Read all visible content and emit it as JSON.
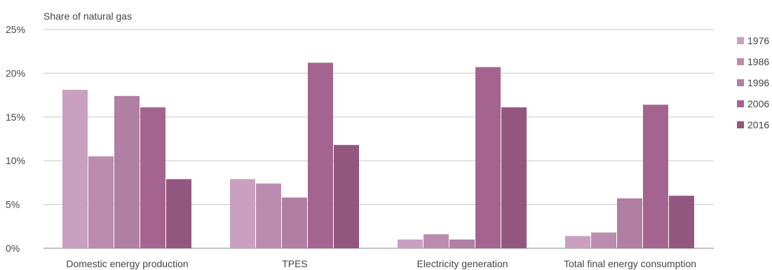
{
  "chart_data": {
    "type": "bar",
    "title": "",
    "ylabel": "Share of natural gas",
    "xlabel": "",
    "ylim": [
      0,
      25
    ],
    "yticks": [
      0,
      5,
      10,
      15,
      20,
      25
    ],
    "ytick_labels": [
      "0%",
      "5%",
      "10%",
      "15%",
      "20%",
      "25%"
    ],
    "grid": true,
    "legend_position": "right",
    "categories": [
      "Domestic energy production",
      "TPES",
      "Electricity generation",
      "Total final energy consumption"
    ],
    "series": [
      {
        "name": "1976",
        "color": "#c9a0c0",
        "values": [
          18.1,
          7.9,
          1.0,
          1.4
        ]
      },
      {
        "name": "1986",
        "color": "#bc8cb0",
        "values": [
          10.5,
          7.4,
          1.6,
          1.8
        ]
      },
      {
        "name": "1996",
        "color": "#b17ea4",
        "values": [
          17.4,
          5.8,
          1.0,
          5.7
        ]
      },
      {
        "name": "2006",
        "color": "#a56490",
        "values": [
          16.1,
          21.2,
          20.7,
          16.4
        ]
      },
      {
        "name": "2016",
        "color": "#93577f",
        "values": [
          7.9,
          11.8,
          16.1,
          6.0
        ]
      }
    ]
  }
}
